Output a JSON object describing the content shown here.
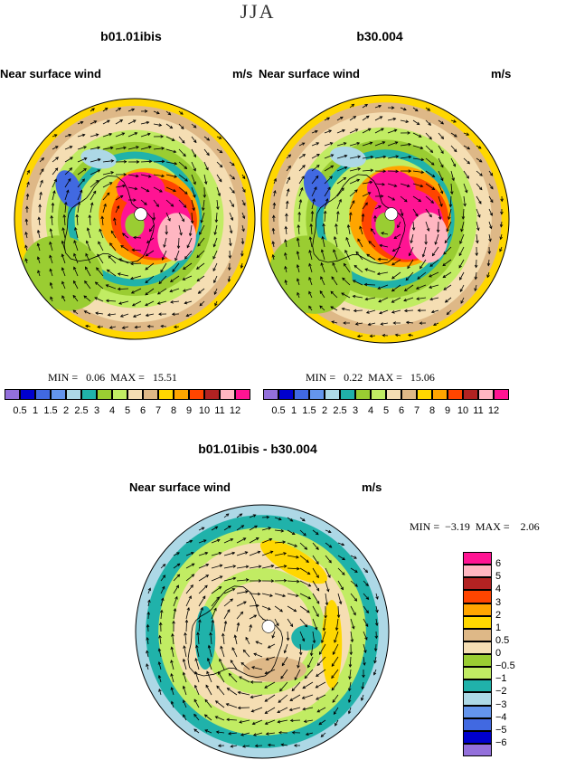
{
  "season": "JJA",
  "panels": [
    {
      "title": "b01.01ibis",
      "variable": "Near surface wind",
      "units": "m/s",
      "min_label": "MIN =",
      "min_value": "0.06",
      "max_label": "MAX =",
      "max_value": "15.51"
    },
    {
      "title": "b30.004",
      "variable": "Near surface wind",
      "units": "m/s",
      "min_label": "MIN =",
      "min_value": "0.22",
      "max_label": "MAX =",
      "max_value": "15.06"
    }
  ],
  "diff": {
    "title": "b01.01ibis - b30.004",
    "variable": "Near surface wind",
    "units": "m/s",
    "min_label": "MIN =",
    "min_value": "−3.19",
    "max_label": "MAX =",
    "max_value": "2.06"
  },
  "colorbar_top": {
    "labels": [
      "0.5",
      "1",
      "1.5",
      "2",
      "2.5",
      "3",
      "4",
      "5",
      "6",
      "7",
      "8",
      "9",
      "10",
      "11",
      "12"
    ],
    "colors": [
      "#9370DB",
      "#0000CD",
      "#4169E1",
      "#6495ED",
      "#ADD8E6",
      "#20B2AA",
      "#9ACD32",
      "#C1EC63",
      "#F5DEB3",
      "#DEB887",
      "#FFD700",
      "#FFA500",
      "#FF4500",
      "#B22222",
      "#FFB6C1",
      "#FF1493"
    ]
  },
  "colorbar_diff": {
    "labels": [
      "6",
      "5",
      "4",
      "3",
      "2",
      "1",
      "0.5",
      "0",
      "−0.5",
      "−1",
      "−2",
      "−3",
      "−4",
      "−5",
      "−6"
    ],
    "colors": [
      "#FF1493",
      "#FFB6C1",
      "#B22222",
      "#FF4500",
      "#FFA500",
      "#FFD700",
      "#DEB887",
      "#F5DEB3",
      "#9ACD32",
      "#C1EC63",
      "#20B2AA",
      "#ADD8E6",
      "#6495ED",
      "#4169E1",
      "#0000CD",
      "#9370DB"
    ]
  }
}
